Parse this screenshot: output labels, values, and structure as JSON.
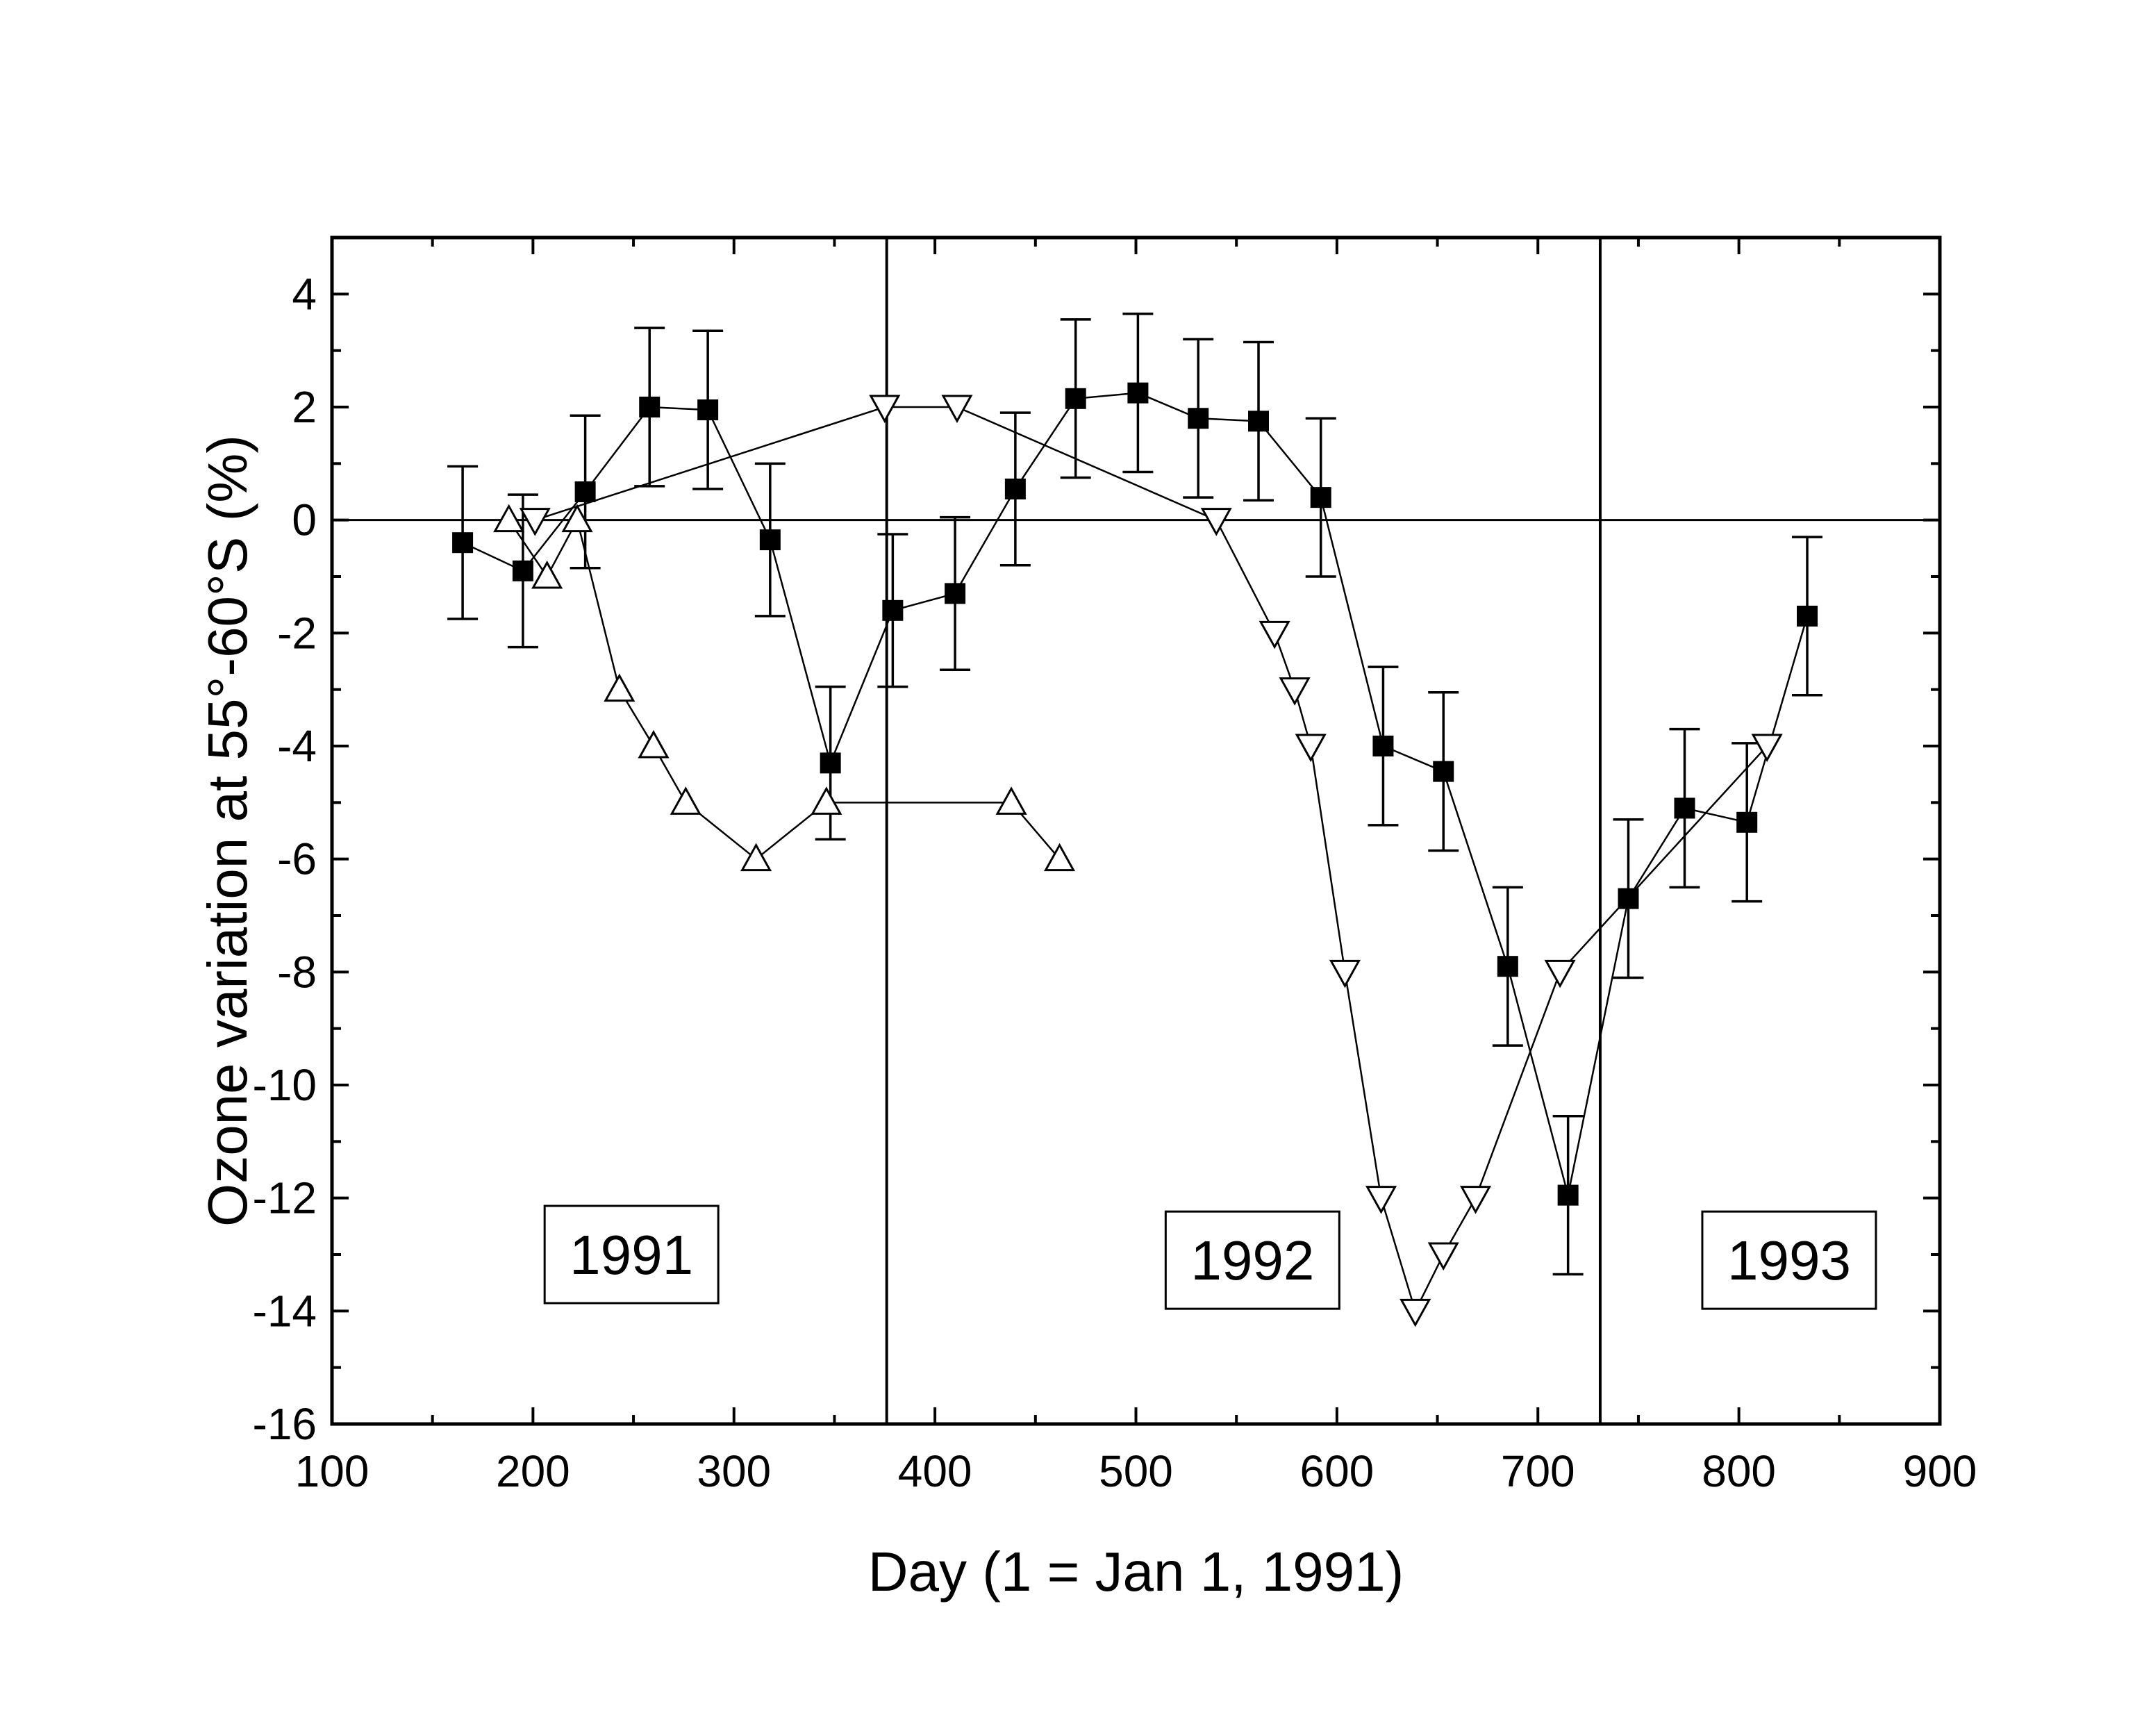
{
  "chart_data": {
    "type": "scatter",
    "xlabel": "Day (1 = Jan 1, 1991)",
    "ylabel": "Ozone variation at 55°-60°S (%)",
    "xlim": [
      100,
      900
    ],
    "ylim": [
      -16,
      5
    ],
    "x_ticks": [
      100,
      200,
      300,
      400,
      500,
      600,
      700,
      800,
      900
    ],
    "y_ticks": [
      -16,
      -14,
      -12,
      -10,
      -8,
      -6,
      -4,
      -2,
      0,
      2,
      4
    ],
    "grid": false,
    "legend": "none",
    "reference_lines": {
      "horizontal_y": 0,
      "vertical_x": [
        376,
        731
      ]
    },
    "annotations": [
      {
        "text": "1991",
        "x": 249,
        "y": -13.0
      },
      {
        "text": "1992",
        "x": 558,
        "y": -13.1
      },
      {
        "text": "1993",
        "x": 825,
        "y": -13.1
      }
    ],
    "series": [
      {
        "marker": "filled-square",
        "errorbars": true,
        "x": [
          165,
          195,
          226,
          258,
          287,
          318,
          348,
          379,
          410,
          440,
          470,
          501,
          531,
          561,
          592,
          623,
          653,
          685,
          715,
          745,
          773,
          804,
          834
        ],
        "y": [
          -0.4,
          -0.9,
          0.5,
          2.0,
          1.95,
          -0.35,
          -4.3,
          -1.6,
          -1.3,
          0.55,
          2.15,
          2.25,
          1.8,
          1.75,
          0.4,
          -4.0,
          -4.45,
          -7.9,
          -11.95,
          -6.7,
          -5.1,
          -5.35,
          -1.7
        ],
        "err": [
          1.35,
          1.35,
          1.35,
          1.4,
          1.4,
          1.35,
          1.35,
          1.35,
          1.35,
          1.35,
          1.4,
          1.4,
          1.4,
          1.4,
          1.4,
          1.4,
          1.4,
          1.4,
          1.4,
          1.4,
          1.4,
          1.4,
          1.4
        ]
      },
      {
        "marker": "open-triangle-up",
        "errorbars": false,
        "x": [
          188,
          207,
          222,
          243,
          260,
          276,
          311,
          346,
          438,
          462
        ],
        "y": [
          0,
          -1.0,
          0,
          -3.0,
          -4.0,
          -5.0,
          -6.0,
          -5.0,
          -5.0,
          -6.0
        ]
      },
      {
        "marker": "open-triangle-down",
        "errorbars": false,
        "x": [
          201,
          375,
          411,
          540,
          569,
          579,
          587,
          604,
          622,
          639,
          653,
          669,
          711,
          814
        ],
        "y": [
          0,
          2.0,
          2.0,
          0,
          -2.0,
          -3.0,
          -4.0,
          -8.0,
          -12.0,
          -14.0,
          -13.0,
          -12.0,
          -8.0,
          -4.0
        ]
      }
    ]
  }
}
